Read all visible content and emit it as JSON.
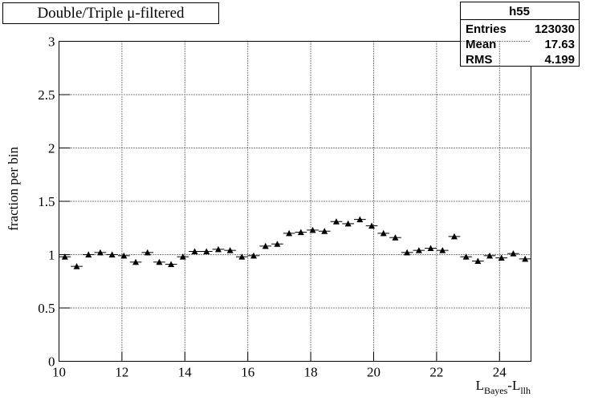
{
  "chart_data": {
    "type": "histogram-errors",
    "title": "Double/Triple μ-filtered",
    "ylabel": "fraction per bin",
    "xlabel": {
      "main1": "L",
      "sub1": "Bayes",
      "main2": "-L",
      "sub2": "llh"
    },
    "stats": {
      "name": "h55",
      "rows": [
        [
          "Entries",
          123030
        ],
        [
          "Mean",
          17.63
        ],
        [
          "RMS",
          4.199
        ]
      ]
    },
    "bins": [
      10,
      10.375,
      10.75,
      11.125,
      11.5,
      11.875,
      12.25,
      12.625,
      13,
      13.375,
      13.75,
      14.125,
      14.5,
      14.875,
      15.25,
      15.625,
      16,
      16.375,
      16.75,
      17.125,
      17.5,
      17.875,
      18.25,
      18.625,
      19,
      19.375,
      19.75,
      20.125,
      20.5,
      20.875,
      21.25,
      21.625,
      22,
      22.375,
      22.75,
      23.125,
      23.5,
      23.875,
      24.25,
      24.625,
      25
    ],
    "values": [
      0.98,
      0.89,
      1.0,
      1.02,
      1.0,
      0.99,
      0.93,
      1.02,
      0.93,
      0.91,
      0.98,
      1.03,
      1.03,
      1.05,
      1.04,
      0.98,
      0.99,
      1.08,
      1.1,
      1.2,
      1.21,
      1.23,
      1.22,
      1.31,
      1.29,
      1.33,
      1.27,
      1.2,
      1.16,
      1.02,
      1.04,
      1.06,
      1.04,
      1.17,
      0.98,
      0.94,
      0.99,
      0.97,
      1.01,
      0.96
    ],
    "errors": [
      0.025,
      0.025,
      0.025,
      0.025,
      0.025,
      0.025,
      0.025,
      0.025,
      0.025,
      0.025,
      0.025,
      0.025,
      0.025,
      0.025,
      0.025,
      0.025,
      0.025,
      0.025,
      0.025,
      0.025,
      0.025,
      0.025,
      0.025,
      0.025,
      0.025,
      0.025,
      0.025,
      0.025,
      0.025,
      0.025,
      0.025,
      0.025,
      0.025,
      0.025,
      0.025,
      0.025,
      0.025,
      0.025,
      0.025,
      0.025
    ],
    "color": "#000000",
    "xlim": [
      10,
      25
    ],
    "xticks": [
      10,
      12,
      14,
      16,
      18,
      20,
      22,
      24
    ],
    "ylim": [
      0,
      3
    ],
    "yticks": [
      0,
      0.5,
      1,
      1.5,
      2,
      2.5,
      3
    ],
    "grid": true
  }
}
